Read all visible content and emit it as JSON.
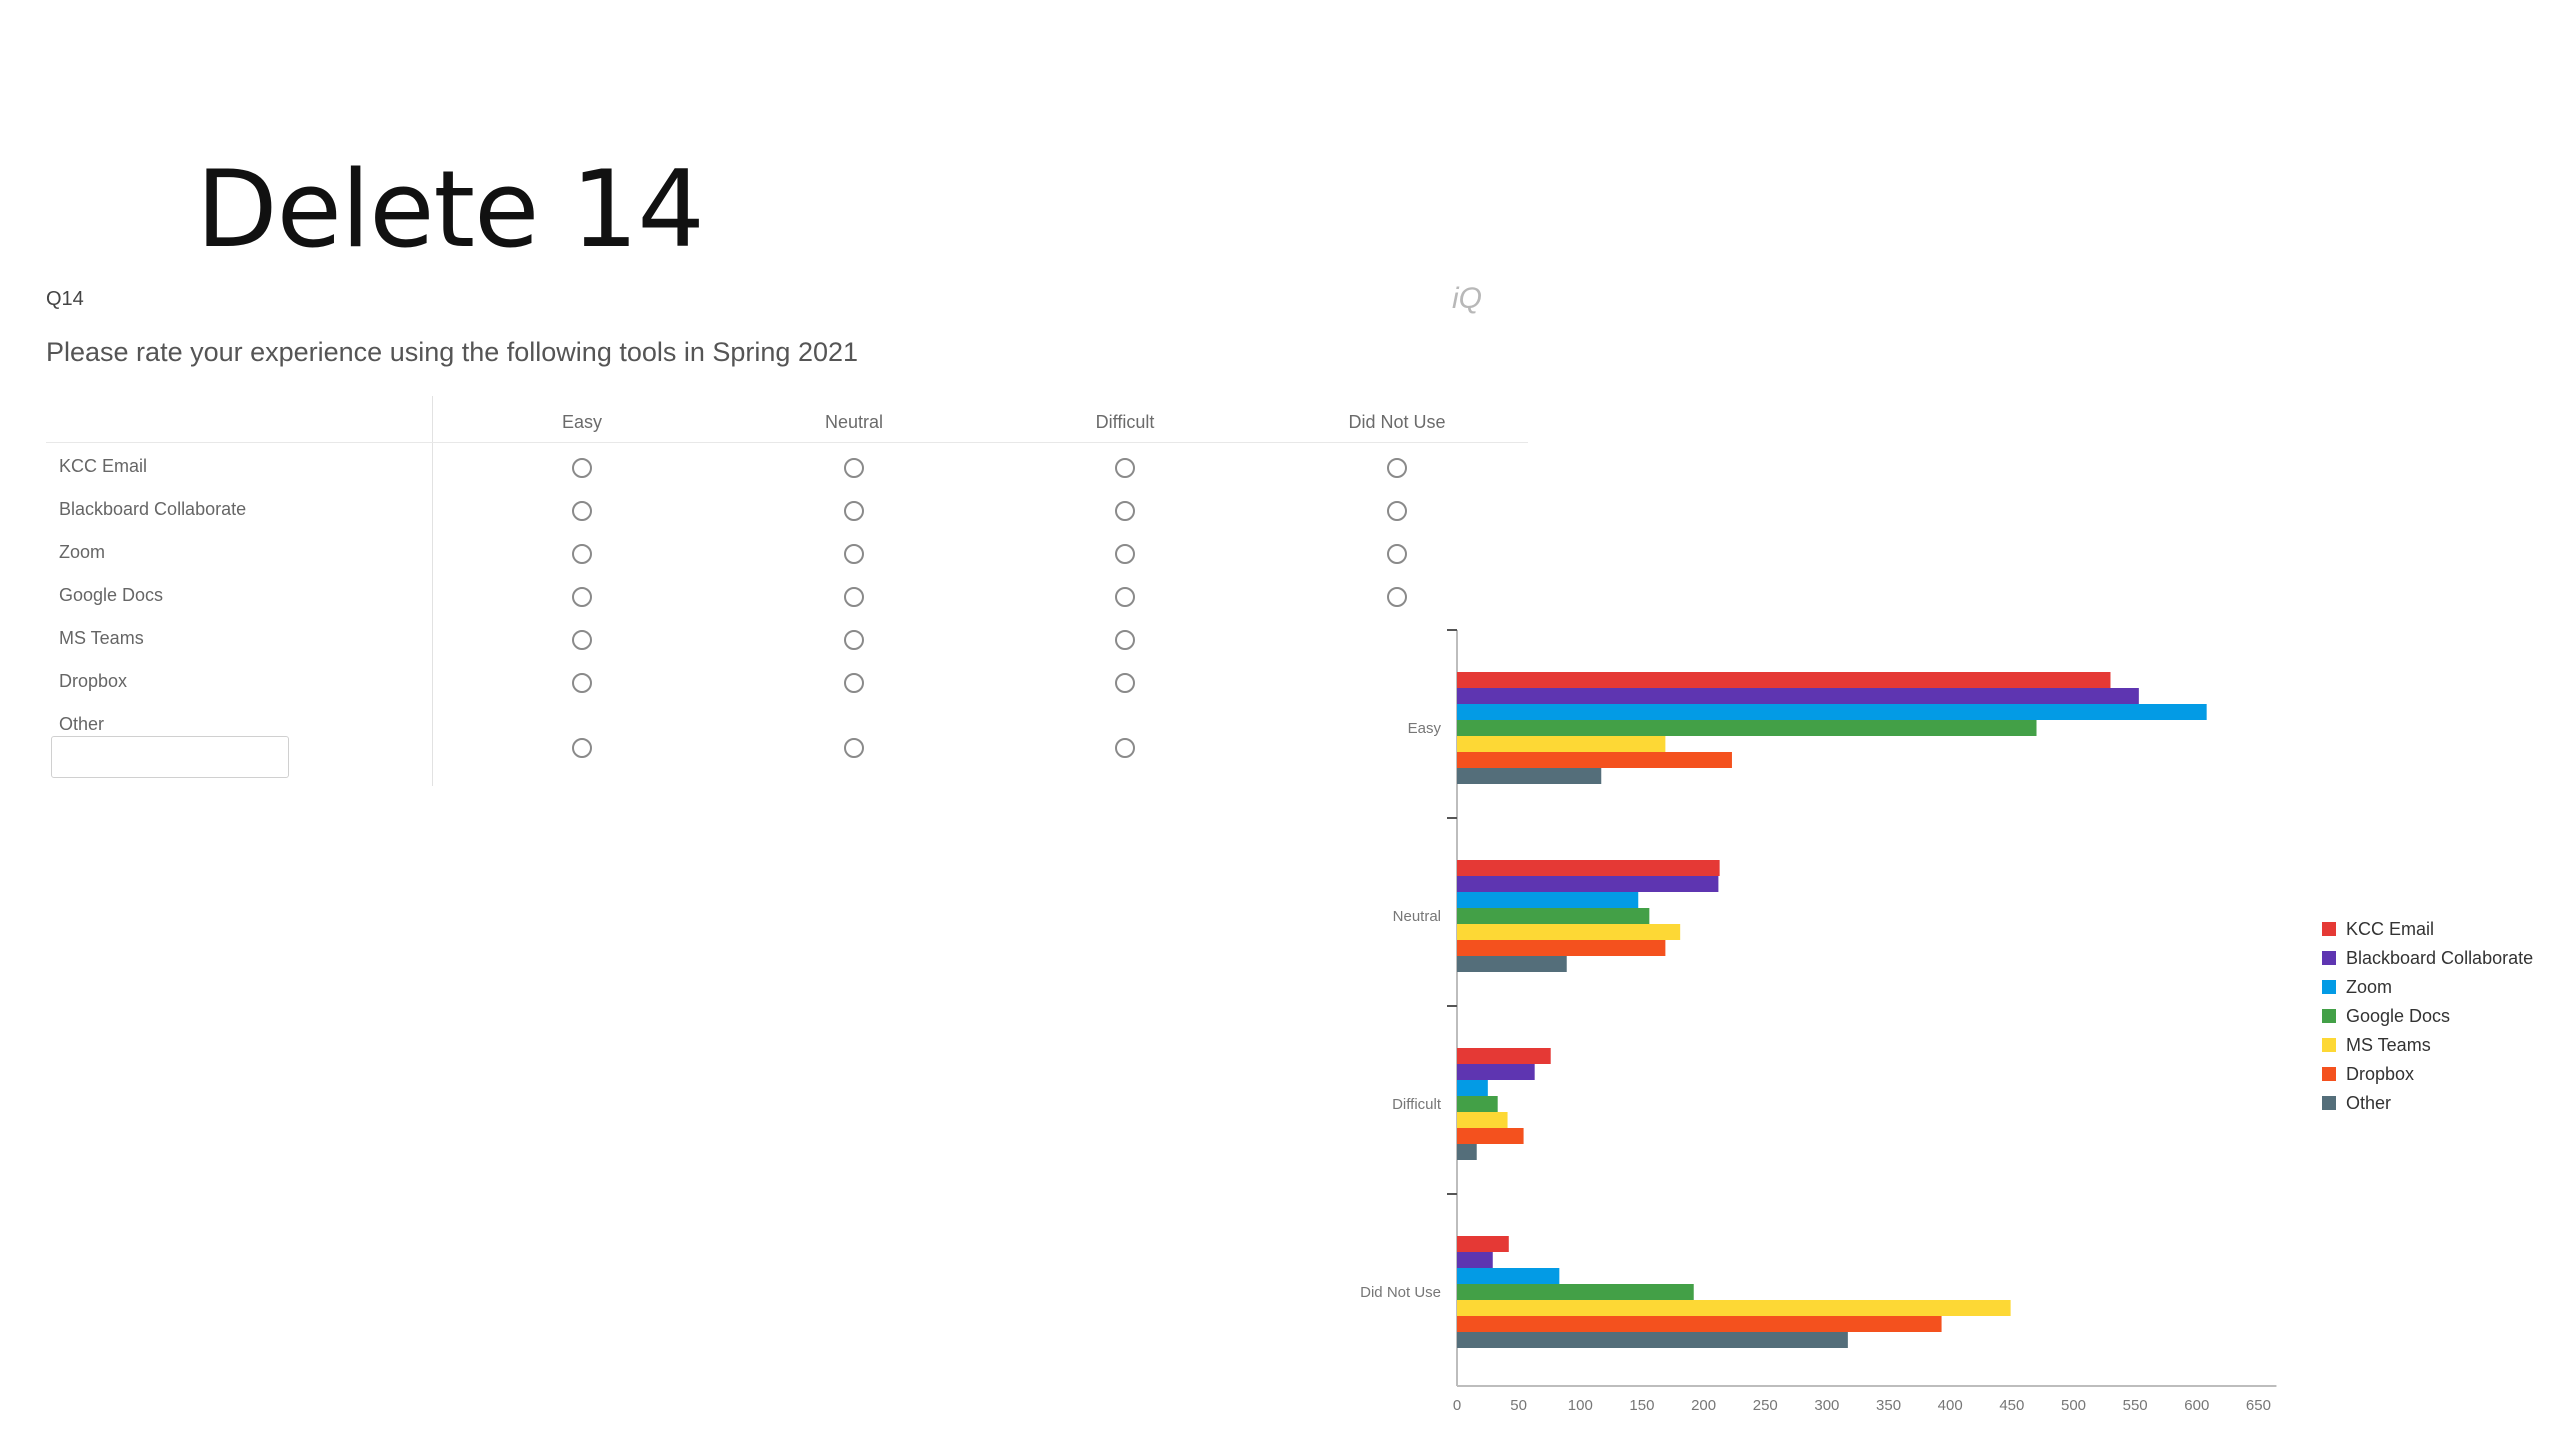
{
  "slide": {
    "title": "Delete 14"
  },
  "question": {
    "number": "Q14",
    "logo_text": "iQ",
    "text": "Please rate your experience using the following tools in Spring 2021",
    "columns": [
      "Easy",
      "Neutral",
      "Difficult",
      "Did Not Use"
    ],
    "rows": [
      {
        "label": "KCC Email",
        "radio_count": 4
      },
      {
        "label": "Blackboard Collaborate",
        "radio_count": 4
      },
      {
        "label": "Zoom",
        "radio_count": 4
      },
      {
        "label": "Google Docs",
        "radio_count": 4
      },
      {
        "label": "MS Teams",
        "radio_count": 3
      },
      {
        "label": "Dropbox",
        "radio_count": 3
      },
      {
        "label": "Other",
        "radio_count": 3,
        "has_text_input": true
      }
    ]
  },
  "chart_data": {
    "type": "bar",
    "orientation": "horizontal",
    "categories": [
      "Easy",
      "Neutral",
      "Difficult",
      "Did Not Use"
    ],
    "xlim": [
      0,
      650
    ],
    "xticks": [
      0,
      50,
      100,
      150,
      200,
      250,
      300,
      350,
      400,
      450,
      500,
      550,
      600,
      650
    ],
    "legend_position": "right",
    "grid": false,
    "series": [
      {
        "name": "KCC Email",
        "color": "#e53935",
        "values": [
          530,
          213,
          76,
          42
        ]
      },
      {
        "name": "Blackboard Collaborate",
        "color": "#5e35b1",
        "values": [
          553,
          212,
          63,
          29
        ]
      },
      {
        "name": "Zoom",
        "color": "#039be5",
        "values": [
          608,
          147,
          25,
          83
        ]
      },
      {
        "name": "Google Docs",
        "color": "#43a047",
        "values": [
          470,
          156,
          33,
          192
        ]
      },
      {
        "name": "MS Teams",
        "color": "#fdd835",
        "values": [
          169,
          181,
          41,
          449
        ]
      },
      {
        "name": "Dropbox",
        "color": "#f4511e",
        "values": [
          223,
          169,
          54,
          393
        ]
      },
      {
        "name": "Other",
        "color": "#546e7a",
        "values": [
          117,
          89,
          16,
          317
        ]
      }
    ]
  }
}
